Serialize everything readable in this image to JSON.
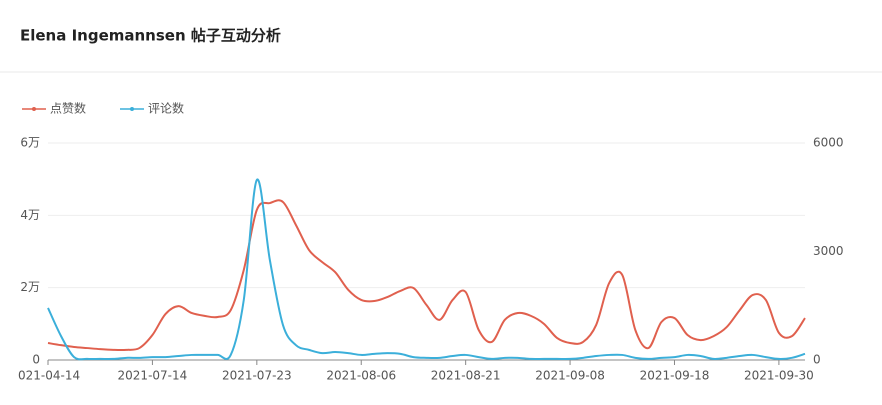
{
  "chart_data": {
    "type": "line",
    "title": "Elena Ingemannsen 帖子互动分析",
    "categories": [
      "021-04-14",
      null,
      null,
      null,
      null,
      null,
      null,
      null,
      "2021-07-14",
      null,
      null,
      null,
      null,
      null,
      null,
      null,
      "2021-07-23",
      null,
      null,
      null,
      null,
      null,
      null,
      null,
      "2021-08-06",
      null,
      null,
      null,
      null,
      null,
      null,
      null,
      "2021-08-21",
      null,
      null,
      null,
      null,
      null,
      null,
      null,
      "2021-09-08",
      null,
      null,
      null,
      null,
      null,
      null,
      null,
      "2021-09-18",
      null,
      null,
      null,
      null,
      null,
      null,
      null,
      "2021-09-30",
      null,
      null
    ],
    "series": [
      {
        "name": "点赞数",
        "color": "#e0604e",
        "axis": "y",
        "values": [
          4700,
          4100,
          3600,
          3300,
          3000,
          2800,
          2800,
          3300,
          6900,
          12700,
          14900,
          13000,
          12200,
          11900,
          13800,
          24900,
          41500,
          43400,
          43700,
          37300,
          30400,
          27100,
          24300,
          19400,
          16600,
          16300,
          17400,
          19100,
          19900,
          15200,
          11100,
          16600,
          18800,
          8300,
          5000,
          11100,
          13000,
          12200,
          10000,
          6100,
          4700,
          5000,
          9700,
          21300,
          23500,
          8300,
          3300,
          10500,
          11600,
          6900,
          5500,
          6600,
          9100,
          13800,
          18000,
          16600,
          7500,
          6600,
          11600
        ]
      },
      {
        "name": "评论数",
        "color": "#3bafda",
        "axis": "y2",
        "values": [
          1440,
          660,
          80,
          30,
          30,
          30,
          60,
          60,
          80,
          80,
          110,
          140,
          140,
          140,
          140,
          1660,
          4980,
          2760,
          970,
          410,
          280,
          190,
          220,
          190,
          140,
          170,
          190,
          170,
          80,
          60,
          60,
          110,
          140,
          80,
          30,
          60,
          60,
          30,
          30,
          30,
          30,
          60,
          110,
          140,
          140,
          60,
          30,
          60,
          80,
          140,
          110,
          30,
          60,
          110,
          140,
          80,
          30,
          60,
          170
        ]
      }
    ],
    "ylim": [
      0,
      60000
    ],
    "yticks": [
      0,
      {
        "value": 20000,
        "label": "2万"
      },
      {
        "value": 40000,
        "label": "4万"
      },
      {
        "value": 60000,
        "label": "6万"
      }
    ],
    "y2lim": [
      0,
      6000
    ],
    "y2ticks": [
      0,
      3000,
      6000
    ],
    "grid": true,
    "legend": "top-left"
  }
}
